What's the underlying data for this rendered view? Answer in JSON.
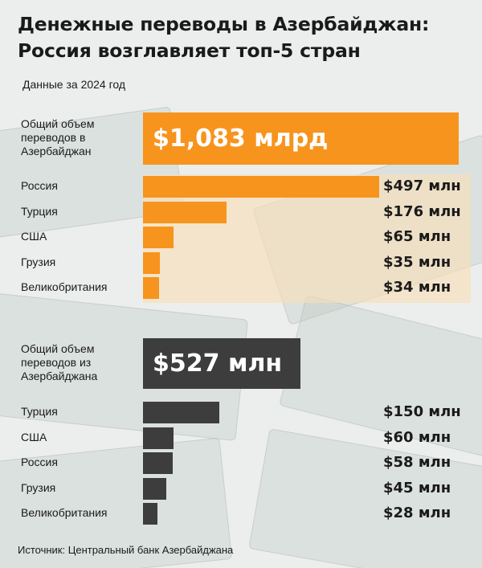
{
  "title_line1": "Денежные переводы в Азербайджан:",
  "title_line2": "Россия возглавляет топ-5 стран",
  "subtitle": "Данные за 2024 год",
  "source": "Источник: Центральный банк Азербайджана",
  "colors": {
    "inbound": "#f7941d",
    "outbound": "#3d3d3d"
  },
  "chart_data": [
    {
      "type": "bar",
      "total_label": "Общий объем переводов в Азербайджан",
      "total_value": "$1,083 млрд",
      "unit": "млн",
      "categories": [
        "Россия",
        "Турция",
        "США",
        "Грузия",
        "Великобритания"
      ],
      "values": [
        497,
        176,
        65,
        35,
        34
      ],
      "value_labels": [
        "$497 млн",
        "$176 млн",
        "$65 млн",
        "$35 млн",
        "$34 млн"
      ]
    },
    {
      "type": "bar",
      "total_label": "Общий объем переводов из Азербайджана",
      "total_value": "$527 млн",
      "unit": "млн",
      "categories": [
        "Турция",
        "США",
        "Россия",
        "Грузия",
        "Великобритания"
      ],
      "values": [
        150,
        60,
        58,
        45,
        28
      ],
      "value_labels": [
        "$150 млн",
        "$60 млн",
        "$58 млн",
        "$45 млн",
        "$28 млн"
      ]
    }
  ]
}
